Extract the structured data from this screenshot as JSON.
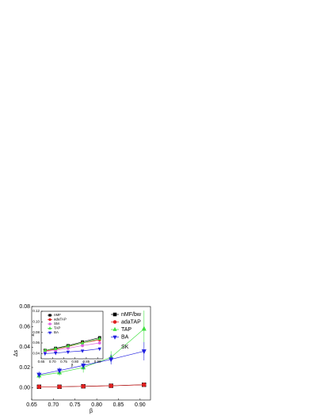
{
  "chart_data": [
    {
      "type": "line",
      "x_label": "β",
      "y_label": "Δs",
      "annotation": "SK",
      "x": [
        0.667,
        0.714,
        0.769,
        0.833,
        0.909
      ],
      "xlim": [
        0.65,
        0.924
      ],
      "ylim": [
        -0.012,
        0.08
      ],
      "xticks": [
        {
          "value": 0.65,
          "label": "0.65"
        },
        {
          "value": 0.7,
          "label": "0.70"
        },
        {
          "value": 0.75,
          "label": "0.75"
        },
        {
          "value": 0.8,
          "label": "0.80"
        },
        {
          "value": 0.85,
          "label": "0.85"
        },
        {
          "value": 0.9,
          "label": "0.90"
        }
      ],
      "yticks": [
        {
          "value": 0,
          "label": "0.00"
        },
        {
          "value": 0.02,
          "label": "0.02"
        },
        {
          "value": 0.04,
          "label": "0.04"
        },
        {
          "value": 0.06,
          "label": "0.06"
        },
        {
          "value": 0.08,
          "label": "0.08"
        }
      ],
      "series": [
        {
          "name": "nMF/bw",
          "color": "#000000",
          "marker": "square",
          "values": [
            0.001,
            0.001,
            0.0015,
            0.002,
            0.003
          ]
        },
        {
          "name": "adaTAP",
          "color": "#e02020",
          "marker": "circle",
          "values": [
            0.001,
            0.001,
            0.0015,
            0.002,
            0.003
          ]
        },
        {
          "name": "TAP",
          "color": "#40e040",
          "marker": "up",
          "values": [
            0.012,
            0.015,
            0.02,
            0.03,
            0.058
          ],
          "errors": [
            0.003,
            0.003,
            0.005,
            0.006,
            0.018
          ]
        },
        {
          "name": "BA",
          "color": "#2020e0",
          "marker": "down",
          "values": [
            0.013,
            0.017,
            0.022,
            0.028,
            0.036
          ],
          "errors": [
            0.003,
            0.003,
            0.004,
            0.005,
            0.009
          ]
        }
      ]
    },
    {
      "type": "line",
      "x_label": "β",
      "y_label": "Δ",
      "x": [
        0.667,
        0.714,
        0.769,
        0.833,
        0.909
      ],
      "xlim": [
        0.65,
        0.924
      ],
      "ylim": [
        0.03,
        0.12
      ],
      "xticks": [
        {
          "value": 0.65,
          "label": "0.65"
        },
        {
          "value": 0.7,
          "label": "0.70"
        },
        {
          "value": 0.75,
          "label": "0.75"
        },
        {
          "value": 0.8,
          "label": "0.80"
        },
        {
          "value": 0.85,
          "label": "0.85"
        },
        {
          "value": 0.9,
          "label": "0.90"
        }
      ],
      "yticks": [
        {
          "value": 0.04,
          "label": "0.04"
        },
        {
          "value": 0.06,
          "label": "0.06"
        },
        {
          "value": 0.08,
          "label": "0.08"
        },
        {
          "value": 0.1,
          "label": "0.10"
        },
        {
          "value": 0.12,
          "label": "0.12"
        }
      ],
      "series": [
        {
          "name": "nMF",
          "color": "#000000",
          "marker": "square",
          "values": [
            0.046,
            0.05,
            0.055,
            0.062,
            0.07
          ]
        },
        {
          "name": "adaTAP",
          "color": "#e02020",
          "marker": "circle",
          "values": [
            0.045,
            0.048,
            0.053,
            0.06,
            0.066
          ]
        },
        {
          "name": "SM",
          "color": "#e060e0",
          "marker": "circle",
          "values": [
            0.044,
            0.046,
            0.05,
            0.055,
            0.06
          ]
        },
        {
          "name": "TAP",
          "color": "#40e040",
          "marker": "up",
          "values": [
            0.046,
            0.049,
            0.054,
            0.06,
            0.068
          ]
        },
        {
          "name": "BA",
          "color": "#2020e0",
          "marker": "down",
          "values": [
            0.04,
            0.041,
            0.043,
            0.045,
            0.049
          ]
        }
      ]
    }
  ]
}
